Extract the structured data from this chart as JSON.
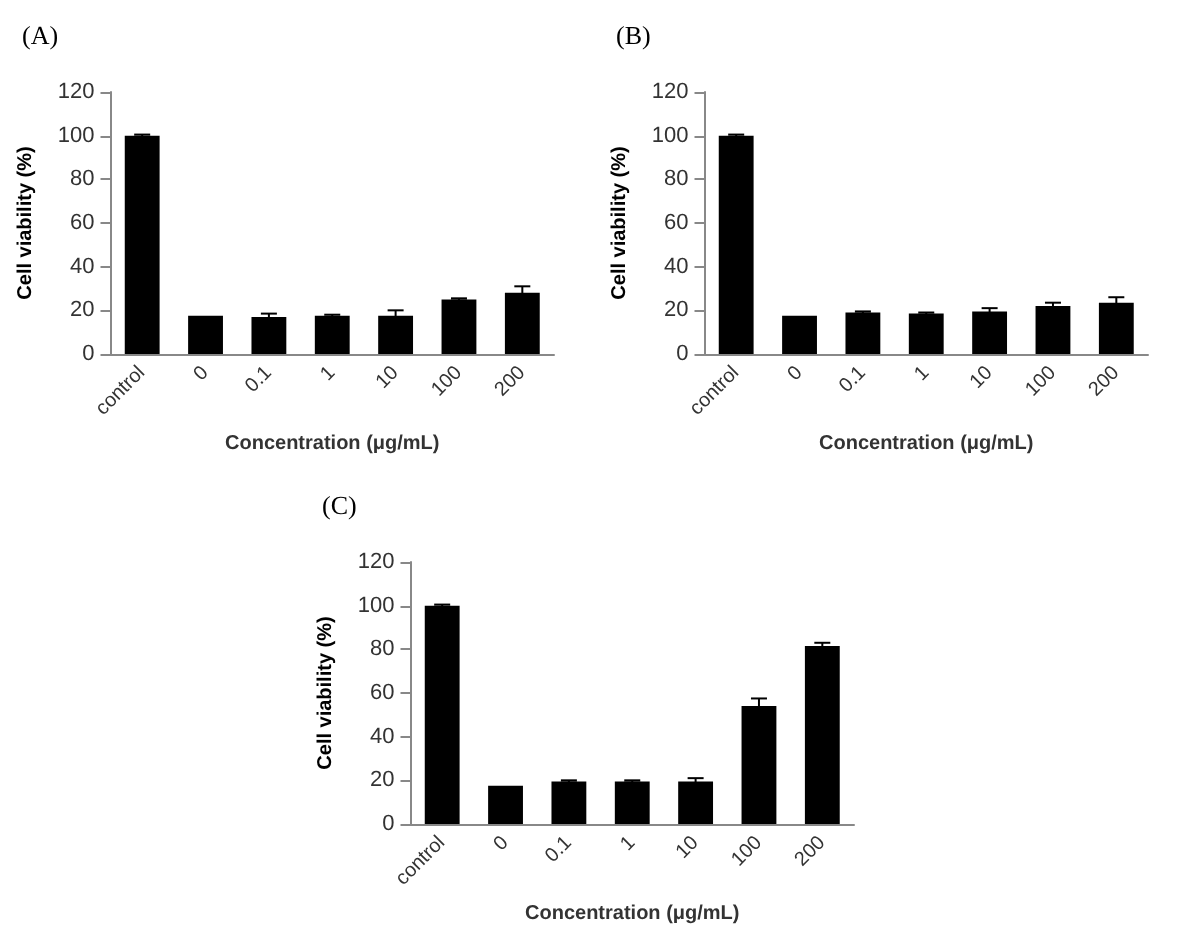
{
  "chart_data": [
    {
      "type": "bar",
      "title": "(A)",
      "xlabel": "Concentration (μg/mL)",
      "ylabel": "Cell viability (%)",
      "categories": [
        "control",
        "0",
        "0.1",
        "1",
        "10",
        "100",
        "200"
      ],
      "color": "#000000",
      "values": [
        100,
        17.5,
        17,
        17.5,
        17.5,
        25,
        28
      ],
      "errors": [
        0.5,
        null,
        1.5,
        0.5,
        2.5,
        0.5,
        3
      ],
      "ylim": [
        0,
        120
      ],
      "yticks": [
        0,
        20,
        40,
        60,
        80,
        100,
        120
      ],
      "grid": false
    },
    {
      "type": "bar",
      "title": "(B)",
      "xlabel": "Concentration (μg/mL)",
      "ylabel": "Cell viability (%)",
      "categories": [
        "control",
        "0",
        "0.1",
        "1",
        "10",
        "100",
        "200"
      ],
      "color": "#000000",
      "values": [
        100,
        17.5,
        19,
        18.5,
        19.5,
        22,
        23.5
      ],
      "errors": [
        0.5,
        null,
        0.5,
        0.5,
        1.5,
        1.5,
        2.5
      ],
      "ylim": [
        0,
        120
      ],
      "yticks": [
        0,
        20,
        40,
        60,
        80,
        100,
        120
      ],
      "grid": false
    },
    {
      "type": "bar",
      "title": "(C)",
      "xlabel": "Concentration (μg/mL)",
      "ylabel": "Cell viability (%)",
      "categories": [
        "control",
        "0",
        "0.1",
        "1",
        "10",
        "100",
        "200"
      ],
      "color": "#000000",
      "values": [
        100,
        17.5,
        19.5,
        19.5,
        19.5,
        54,
        81.5
      ],
      "errors": [
        0.5,
        null,
        0.5,
        0.5,
        1.5,
        3.5,
        1.5
      ],
      "ylim": [
        0,
        120
      ],
      "yticks": [
        0,
        20,
        40,
        60,
        80,
        100,
        120
      ],
      "grid": false
    }
  ]
}
